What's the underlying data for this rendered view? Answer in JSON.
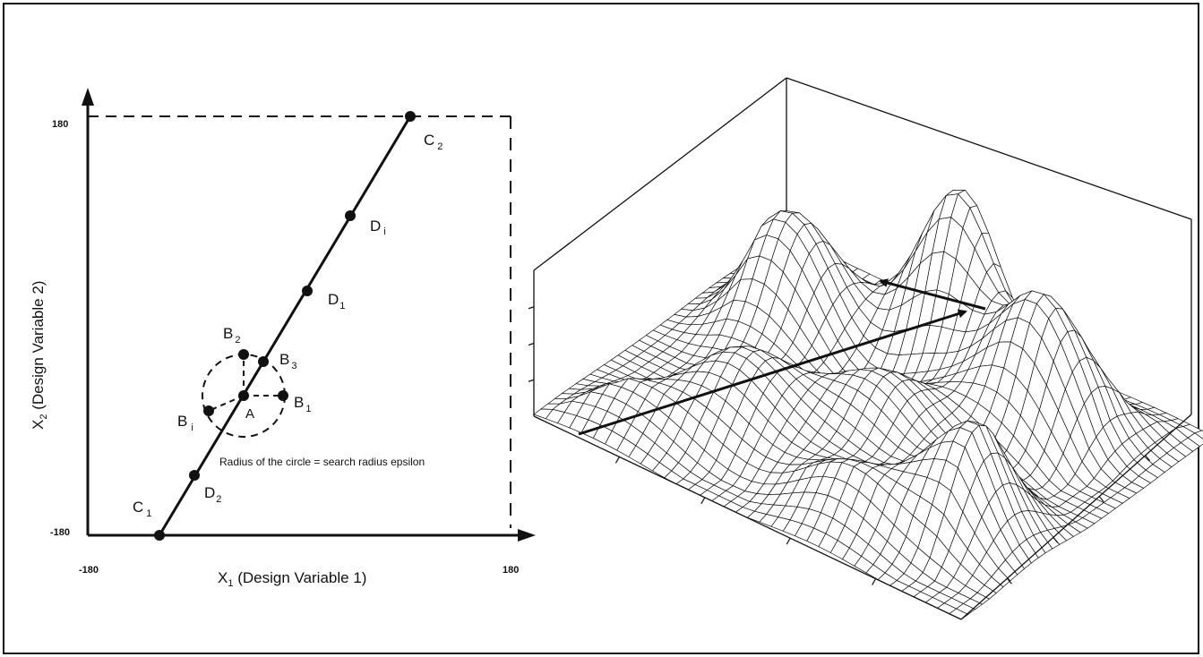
{
  "left_panel": {
    "x_axis": {
      "min_label": "-180",
      "max_label": "180",
      "title": "X",
      "title_sub": "1",
      "title_rest": " (Design Variable 1)"
    },
    "y_axis": {
      "min_label": "-180",
      "max_label": "180",
      "title": "X",
      "title_sub": "2",
      "title_rest": " (Design Variable 2)"
    },
    "points": {
      "C1": {
        "base": "C",
        "sub": "1"
      },
      "C2": {
        "base": "C",
        "sub": "2"
      },
      "D1": {
        "base": "D",
        "sub": "1"
      },
      "D2": {
        "base": "D",
        "sub": "2"
      },
      "Di": {
        "base": "D",
        "sub": "i"
      },
      "A": {
        "base": "A",
        "sub": ""
      },
      "B1": {
        "base": "B",
        "sub": "1"
      },
      "B2": {
        "base": "B",
        "sub": "2"
      },
      "B3": {
        "base": "B",
        "sub": "3"
      },
      "Bi": {
        "base": "B",
        "sub": "i"
      }
    },
    "note": "Radius of the circle = search radius epsilon"
  },
  "right_panel": {
    "surface_mesh_color": "#111111"
  }
}
